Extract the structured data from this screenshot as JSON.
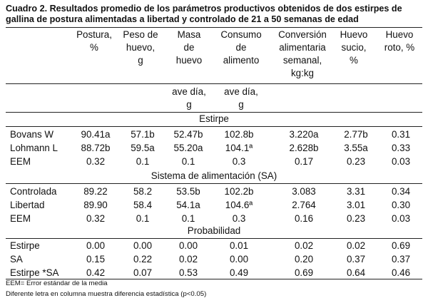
{
  "title": {
    "line1": "Cuadro 2.  Resultados promedio de los parámetros productivos obtenidos de dos estirpes de",
    "line2": "gallina de postura alimentadas a libertad  y controlado de 21 a 50 semanas de edad"
  },
  "headers": {
    "postura": [
      "Postura,",
      "%"
    ],
    "peso": [
      "Peso de",
      "huevo,",
      "g"
    ],
    "masa": [
      "Masa",
      "de",
      "huevo"
    ],
    "consumo": [
      "Consumo",
      "de",
      "alimento"
    ],
    "conversion": [
      "Conversión",
      "alimentaria",
      "semanal,",
      "kg:kg"
    ],
    "sucio": [
      "Huevo",
      "sucio,",
      "%"
    ],
    "roto": [
      "Huevo",
      "roto, %"
    ]
  },
  "units": {
    "masa": [
      "ave día,",
      "g"
    ],
    "consumo": [
      "ave día,",
      "g"
    ]
  },
  "sections": {
    "estirpe": "Estirpe",
    "sistema": "Sistema de alimentación (SA)",
    "probabilidad": "Probabilidad"
  },
  "rows": {
    "estirpe": [
      [
        "Bovans W",
        "90.41a",
        "57.1b",
        "52.47b",
        "102.8b",
        "3.220a",
        "2.77b",
        "0.31"
      ],
      [
        "Lohmann L",
        "88.72b",
        "59.5a",
        "55.20a",
        "104.1ª",
        "2.628b",
        "3.55a",
        "0.33"
      ],
      [
        "EEM",
        "0.32",
        "0.1",
        "0.1",
        "0.3",
        "0.17",
        "0.23",
        "0.03"
      ]
    ],
    "sistema": [
      [
        "Controlada",
        "89.22",
        "58.2",
        "53.5b",
        "102.2b",
        "3.083",
        "3.31",
        "0.34"
      ],
      [
        "Libertad",
        "89.90",
        "58.4",
        "54.1a",
        "104.6ª",
        "2.764",
        "3.01",
        "0.30"
      ],
      [
        "EEM",
        "0.32",
        "0.1",
        "0.1",
        "0.3",
        "0.16",
        "0.23",
        "0.03"
      ]
    ],
    "probabilidad": [
      [
        "Estirpe",
        "0.00",
        "0.00",
        "0.00",
        "0.01",
        "0.02",
        "0.02",
        "0.69"
      ],
      [
        "SA",
        "0.15",
        "0.22",
        "0.02",
        "0.00",
        "0.20",
        "0.37",
        "0.37"
      ],
      [
        "Estirpe *SA",
        "0.42",
        "0.07",
        "0.53",
        "0.49",
        "0.69",
        "0.64",
        "0.46"
      ]
    ]
  },
  "footnotes": {
    "eem": "EEM= Error estándar de la media",
    "letras": "Diferente letra en columna muestra diferencia estadística (p<0.05)"
  }
}
